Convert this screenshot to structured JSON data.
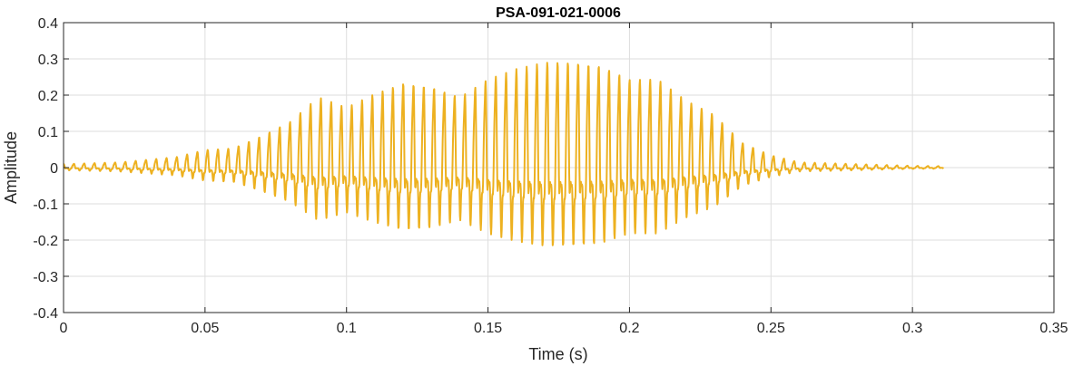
{
  "chart_data": {
    "type": "line",
    "title": "PSA-091-021-0006",
    "xlabel": "Time (s)",
    "ylabel": "Amplitude",
    "xlim": [
      0,
      0.35
    ],
    "ylim": [
      -0.4,
      0.4
    ],
    "xticks": [
      0,
      0.05,
      0.1,
      0.15,
      0.2,
      0.25,
      0.3,
      0.35
    ],
    "xtick_labels": [
      "0",
      "0.05",
      "0.1",
      "0.15",
      "0.2",
      "0.25",
      "0.3",
      "0.35"
    ],
    "yticks": [
      -0.4,
      -0.3,
      -0.2,
      -0.1,
      0,
      0.1,
      0.2,
      0.3,
      0.4
    ],
    "ytick_labels": [
      "-0.4",
      "-0.3",
      "-0.2",
      "-0.1",
      "0",
      "0.1",
      "0.2",
      "0.3",
      "0.4"
    ],
    "grid": true,
    "series": [
      {
        "color": "#EDB120",
        "t_end": 0.311,
        "envelope": {
          "t": [
            0,
            0.02,
            0.04,
            0.05,
            0.06,
            0.07,
            0.08,
            0.09,
            0.1,
            0.11,
            0.12,
            0.13,
            0.14,
            0.15,
            0.16,
            0.17,
            0.18,
            0.19,
            0.2,
            0.21,
            0.22,
            0.23,
            0.24,
            0.25,
            0.26,
            0.28,
            0.3,
            0.311
          ],
          "peak": [
            0.01,
            0.015,
            0.03,
            0.05,
            0.055,
            0.09,
            0.13,
            0.2,
            0.17,
            0.21,
            0.24,
            0.23,
            0.2,
            0.25,
            0.28,
            0.3,
            0.3,
            0.29,
            0.25,
            0.25,
            0.19,
            0.15,
            0.07,
            0.035,
            0.015,
            0.01,
            0.005,
            0.004
          ]
        },
        "max": 0.3,
        "min": -0.3
      }
    ]
  }
}
